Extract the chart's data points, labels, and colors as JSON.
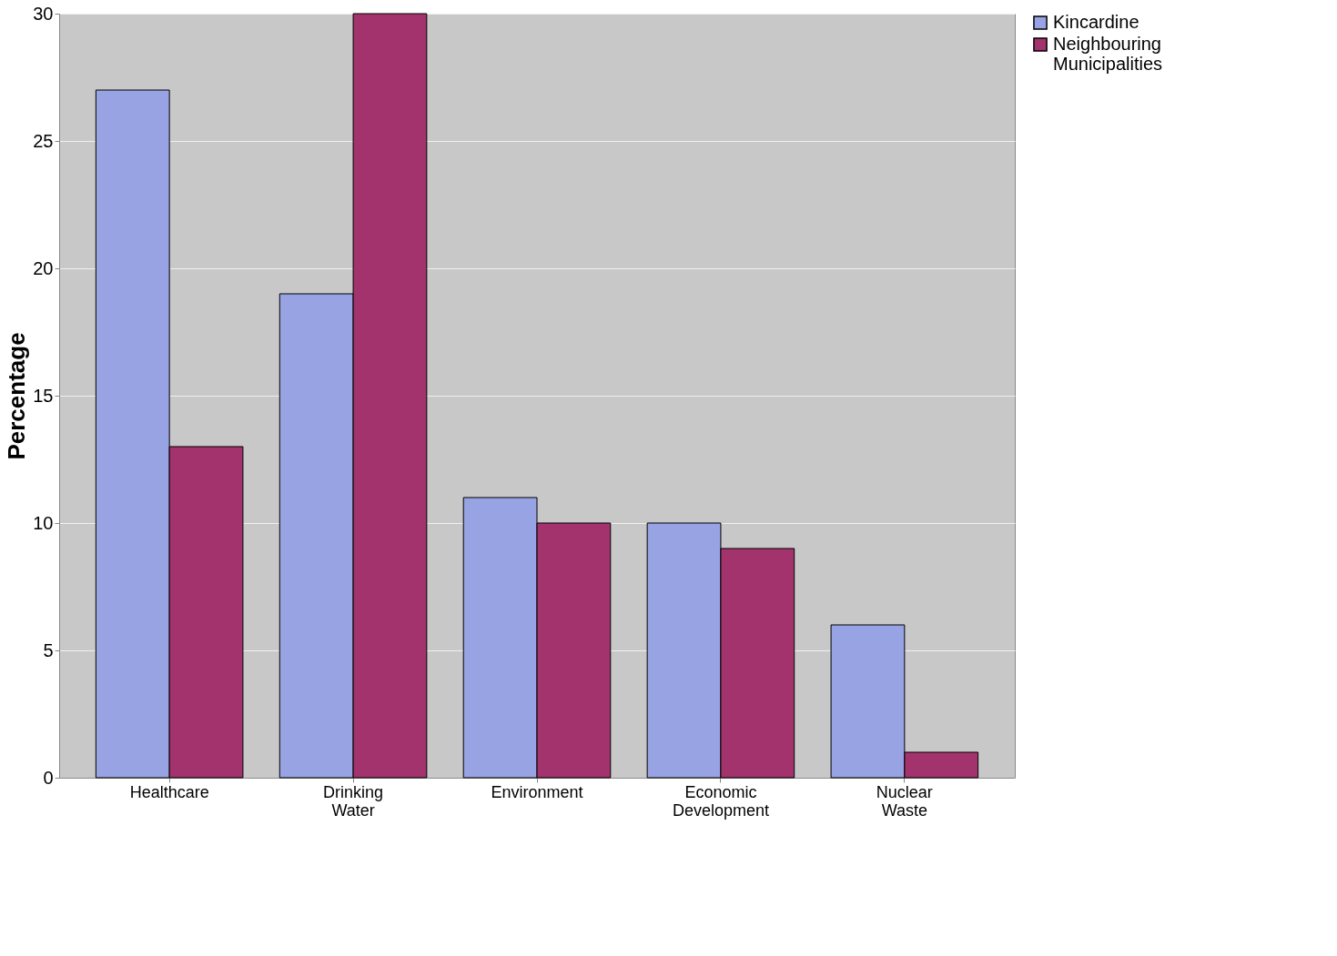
{
  "chart_data": {
    "type": "bar",
    "ylabel": "Percentage",
    "categories": [
      "Healthcare",
      "Drinking Water",
      "Environment",
      "Economic Development",
      "Nuclear Waste"
    ],
    "series": [
      {
        "name": "Kincardine",
        "color": "#98a3e3",
        "values": [
          27,
          19,
          11,
          10,
          6
        ]
      },
      {
        "name": "Neighbouring Municipalities",
        "color": "#a2336c",
        "values": [
          13,
          30,
          10,
          9,
          1
        ]
      }
    ],
    "ylim": [
      0,
      30
    ],
    "yticks": [
      0,
      5,
      10,
      15,
      20,
      25,
      30
    ],
    "grid": "y",
    "legend": "right"
  }
}
